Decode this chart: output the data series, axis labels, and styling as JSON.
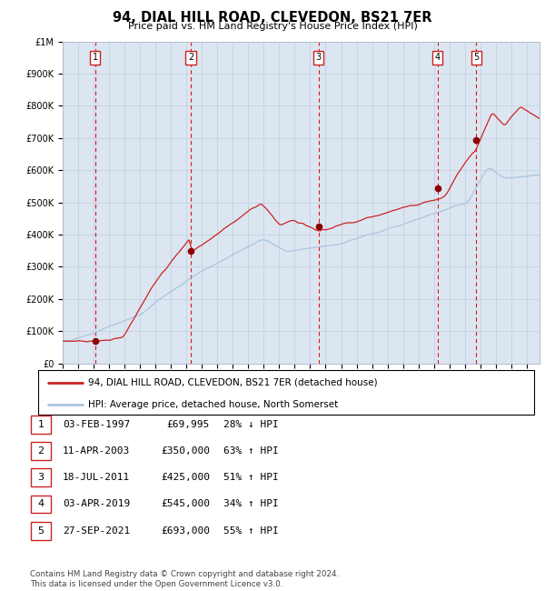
{
  "title": "94, DIAL HILL ROAD, CLEVEDON, BS21 7ER",
  "subtitle": "Price paid vs. HM Land Registry's House Price Index (HPI)",
  "plot_bg_color": "#dce6f1",
  "ylim": [
    0,
    1000000
  ],
  "xlim_start": 1995.0,
  "xlim_end": 2025.83,
  "yticks": [
    0,
    100000,
    200000,
    300000,
    400000,
    500000,
    600000,
    700000,
    800000,
    900000,
    1000000
  ],
  "ytick_labels": [
    "£0",
    "£100K",
    "£200K",
    "£300K",
    "£400K",
    "£500K",
    "£600K",
    "£700K",
    "£800K",
    "£900K",
    "£1M"
  ],
  "sales": [
    {
      "num": 1,
      "year": 1997.09,
      "price": 69995
    },
    {
      "num": 2,
      "year": 2003.28,
      "price": 350000
    },
    {
      "num": 3,
      "year": 2011.54,
      "price": 425000
    },
    {
      "num": 4,
      "year": 2019.25,
      "price": 545000
    },
    {
      "num": 5,
      "year": 2021.74,
      "price": 693000
    }
  ],
  "legend_label_red": "94, DIAL HILL ROAD, CLEVEDON, BS21 7ER (detached house)",
  "legend_label_blue": "HPI: Average price, detached house, North Somerset",
  "footnote": "Contains HM Land Registry data © Crown copyright and database right 2024.\nThis data is licensed under the Open Government Licence v3.0.",
  "table_rows": [
    {
      "num": 1,
      "date": "03-FEB-1997",
      "price": "£69,995",
      "rel": "28% ↓ HPI"
    },
    {
      "num": 2,
      "date": "11-APR-2003",
      "price": "£350,000",
      "rel": "63% ↑ HPI"
    },
    {
      "num": 3,
      "date": "18-JUL-2011",
      "price": "£425,000",
      "rel": "51% ↑ HPI"
    },
    {
      "num": 4,
      "date": "03-APR-2019",
      "price": "£545,000",
      "rel": "34% ↑ HPI"
    },
    {
      "num": 5,
      "date": "27-SEP-2021",
      "price": "£693,000",
      "rel": "55% ↑ HPI"
    }
  ]
}
